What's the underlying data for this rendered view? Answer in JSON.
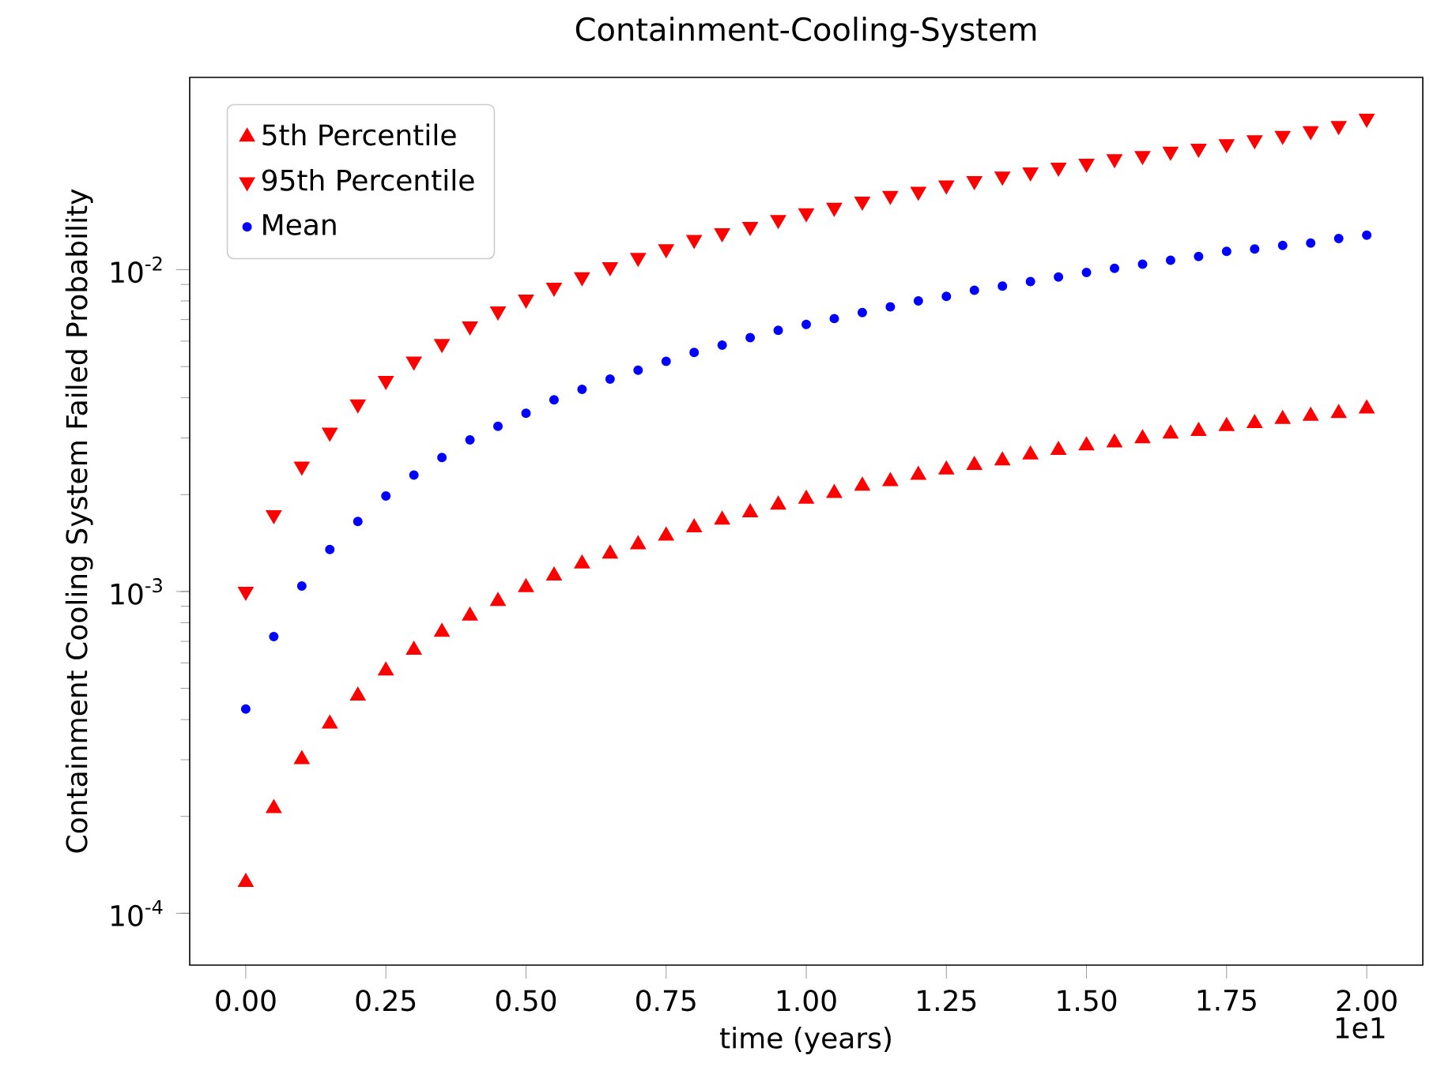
{
  "chart_data": {
    "type": "scatter",
    "title": "Containment-Cooling-System",
    "xlabel": "time (years)",
    "ylabel": "Containment Cooling System Failed Probability",
    "log": "y",
    "legend": "top left",
    "annotations": [
      "1e1"
    ],
    "x": [
      0,
      0.05,
      0.1,
      0.15,
      0.2,
      0.25,
      0.3,
      0.35,
      0.4,
      0.45,
      0.5,
      0.55,
      0.6,
      0.65,
      0.7,
      0.75,
      0.8,
      0.85,
      0.9,
      0.95,
      1,
      1.05,
      1.1,
      1.15,
      1.2,
      1.25,
      1.3,
      1.35,
      1.4,
      1.45,
      1.5,
      1.55,
      1.6,
      1.65,
      1.7,
      1.75,
      1.8,
      1.85,
      1.9,
      1.95,
      2
    ],
    "xlim": [
      -0.1,
      2.1
    ],
    "ylim": [
      6.9e-05,
      0.0396
    ],
    "xticks": [
      {
        "value": 0,
        "label": "0.00"
      },
      {
        "value": 0.25,
        "label": "0.25"
      },
      {
        "value": 0.5,
        "label": "0.50"
      },
      {
        "value": 0.75,
        "label": "0.75"
      },
      {
        "value": 1,
        "label": "1.00"
      },
      {
        "value": 1.25,
        "label": "1.25"
      },
      {
        "value": 1.5,
        "label": "1.50"
      },
      {
        "value": 1.75,
        "label": "1.75"
      },
      {
        "value": 2,
        "label": "2.00"
      }
    ],
    "yticks": [
      {
        "value": 0.0001,
        "label": "10$^{-4}$"
      },
      {
        "value": 0.001,
        "label": "10$^{-3}$"
      },
      {
        "value": 0.01,
        "label": "10$^{-2}$"
      }
    ],
    "series": [
      {
        "name": "5th Percentile",
        "color": "#ff0000",
        "marker": "triangle",
        "values": [
          0.000125,
          0.000212,
          0.000301,
          0.000388,
          0.000474,
          0.000567,
          0.000658,
          0.000748,
          0.00084,
          0.000933,
          0.00103,
          0.00112,
          0.00122,
          0.00131,
          0.0014,
          0.00149,
          0.00158,
          0.00167,
          0.00176,
          0.00186,
          0.00194,
          0.00202,
          0.00213,
          0.0022,
          0.0023,
          0.00239,
          0.00247,
          0.00255,
          0.00266,
          0.00275,
          0.00284,
          0.0029,
          0.00299,
          0.00309,
          0.00315,
          0.00326,
          0.00333,
          0.00343,
          0.00351,
          0.00358,
          0.0037
        ]
      },
      {
        "name": "95th Percentile",
        "color": "#ff0000",
        "marker": "triangle down",
        "values": [
          0.001,
          0.00173,
          0.00245,
          0.00312,
          0.00382,
          0.00452,
          0.00519,
          0.00589,
          0.00668,
          0.00743,
          0.00809,
          0.00881,
          0.00949,
          0.0102,
          0.0109,
          0.0116,
          0.0124,
          0.013,
          0.0136,
          0.0143,
          0.015,
          0.0156,
          0.0163,
          0.017,
          0.0175,
          0.0183,
          0.0189,
          0.0195,
          0.0201,
          0.0208,
          0.0214,
          0.0221,
          0.0226,
          0.0233,
          0.0238,
          0.0246,
          0.0253,
          0.0261,
          0.027,
          0.028,
          0.0295
        ]
      },
      {
        "name": "Mean",
        "color": "#0000ff",
        "marker": "circle",
        "values": [
          0.000431,
          0.000724,
          0.00104,
          0.00135,
          0.00165,
          0.00198,
          0.0023,
          0.00261,
          0.00296,
          0.00326,
          0.00358,
          0.00394,
          0.00425,
          0.00457,
          0.00487,
          0.00519,
          0.00553,
          0.00583,
          0.00615,
          0.00648,
          0.00676,
          0.00705,
          0.00736,
          0.00767,
          0.008,
          0.00826,
          0.00863,
          0.0089,
          0.00919,
          0.00949,
          0.0098,
          0.0101,
          0.0104,
          0.0107,
          0.011,
          0.0114,
          0.0116,
          0.0119,
          0.0121,
          0.0125,
          0.0128
        ]
      }
    ]
  }
}
